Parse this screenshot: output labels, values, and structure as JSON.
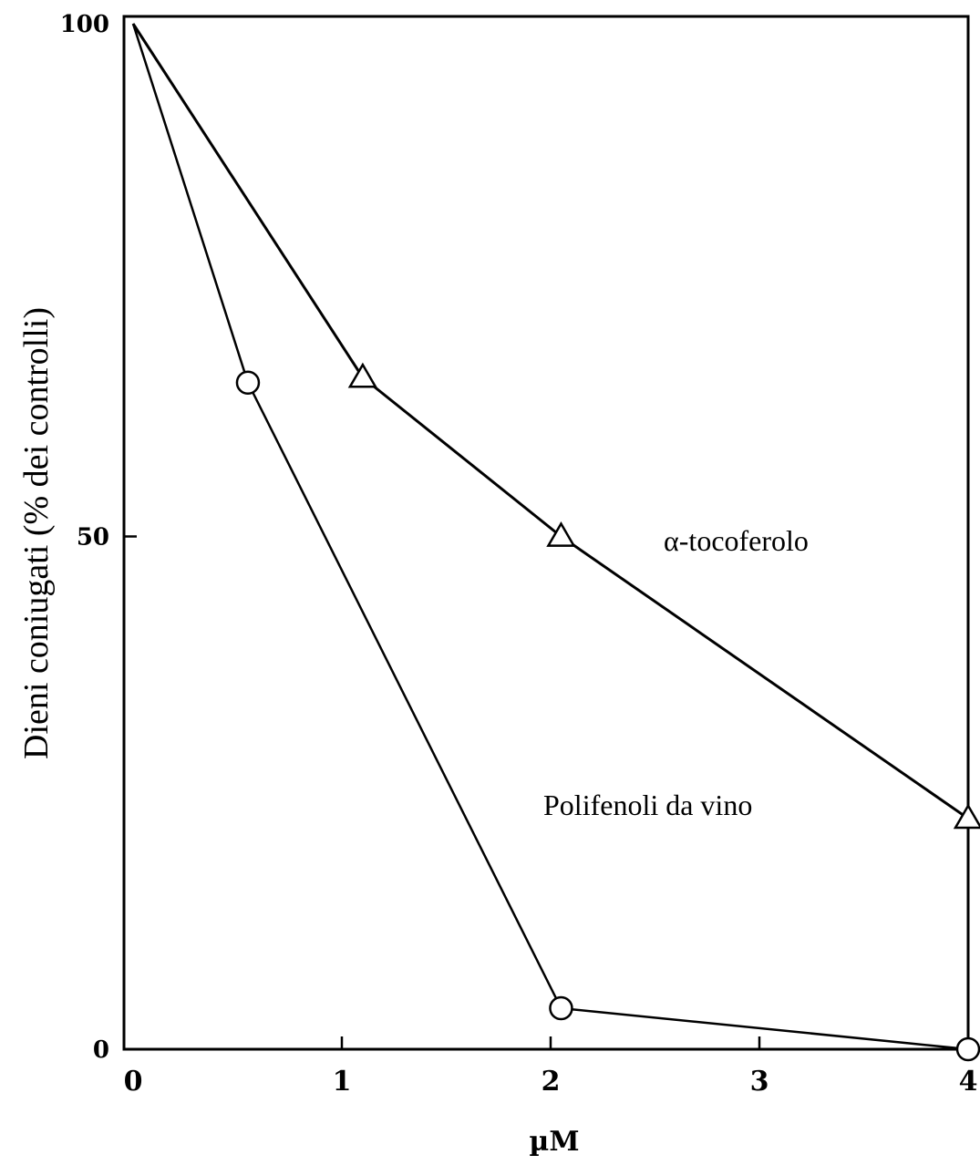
{
  "chart_data": {
    "type": "line",
    "title": "",
    "xlabel": "µM",
    "ylabel": "Dieni coniugati (% dei controlli)",
    "xlim": [
      0,
      4
    ],
    "ylim": [
      0,
      100
    ],
    "grid": false,
    "x_ticks": [
      "0",
      "1",
      "2",
      "3",
      "4"
    ],
    "y_ticks": [
      "0",
      "50",
      "100"
    ],
    "series": [
      {
        "name": "α-tocoferolo",
        "marker": "triangle",
        "points": [
          [
            0,
            100
          ],
          [
            1.1,
            65.5
          ],
          [
            2.05,
            50
          ],
          [
            4,
            22.5
          ]
        ]
      },
      {
        "name": "Polifenoli da vino",
        "marker": "circle",
        "points": [
          [
            0,
            100
          ],
          [
            0.55,
            65
          ],
          [
            2.05,
            4
          ],
          [
            4,
            0
          ]
        ]
      }
    ]
  }
}
